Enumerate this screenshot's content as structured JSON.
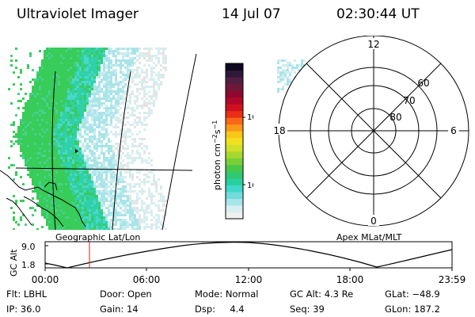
{
  "header": {
    "instrument": "Ultraviolet Imager",
    "date": "14 Jul 07",
    "time": "02:30:44 UT"
  },
  "colorbar": {
    "label_main": "photon cm",
    "label_exp1": "−2",
    "label_s": "s",
    "label_exp2": "−1",
    "ticks": [
      "100",
      "10"
    ],
    "colors": [
      "#f0f0f0",
      "#d8eef0",
      "#a8e4e8",
      "#70dcdc",
      "#40d8c8",
      "#28d0a0",
      "#30c870",
      "#48c848",
      "#78d038",
      "#a8d830",
      "#d0e028",
      "#f0e020",
      "#f8c818",
      "#f89818",
      "#f86818",
      "#e83018",
      "#d01020",
      "#b00828",
      "#900830",
      "#701838",
      "#502040",
      "#301838",
      "#100820"
    ],
    "color_scale_note": ""
  },
  "left_panel": {
    "caption": "Geographic Lat/Lon"
  },
  "polar_panel": {
    "caption": "Apex MLat/MLT",
    "mlt_labels": {
      "top": "12",
      "right": "6",
      "bottom": "0",
      "left": "18"
    },
    "mlat_labels": [
      "60",
      "70",
      "80"
    ]
  },
  "altitude_plot": {
    "ylabel": "GC Alt",
    "y_ticks": [
      "9.0",
      "1.8"
    ],
    "x_ticks": [
      "00:00",
      "06:00",
      "12:00",
      "18:00",
      "23:59"
    ],
    "marker_color": "#d02020"
  },
  "info_rows": [
    [
      {
        "label": "Flt:",
        "value": "LBHL"
      },
      {
        "label": "Door:",
        "value": "Open"
      },
      {
        "label": "Mode:",
        "value": "Normal"
      },
      {
        "label": "GC Alt:",
        "value": "4.3 Re"
      },
      {
        "label": "GLat:",
        "value": "−48.9"
      }
    ],
    [
      {
        "label": "IP:",
        "value": "36.0"
      },
      {
        "label": "Gain:",
        "value": "14"
      },
      {
        "label": "Dsp:",
        "value": "4.4"
      },
      {
        "label": "Seq:",
        "value": "39"
      },
      {
        "label": "GLon:",
        "value": "187.2"
      }
    ]
  ]
}
